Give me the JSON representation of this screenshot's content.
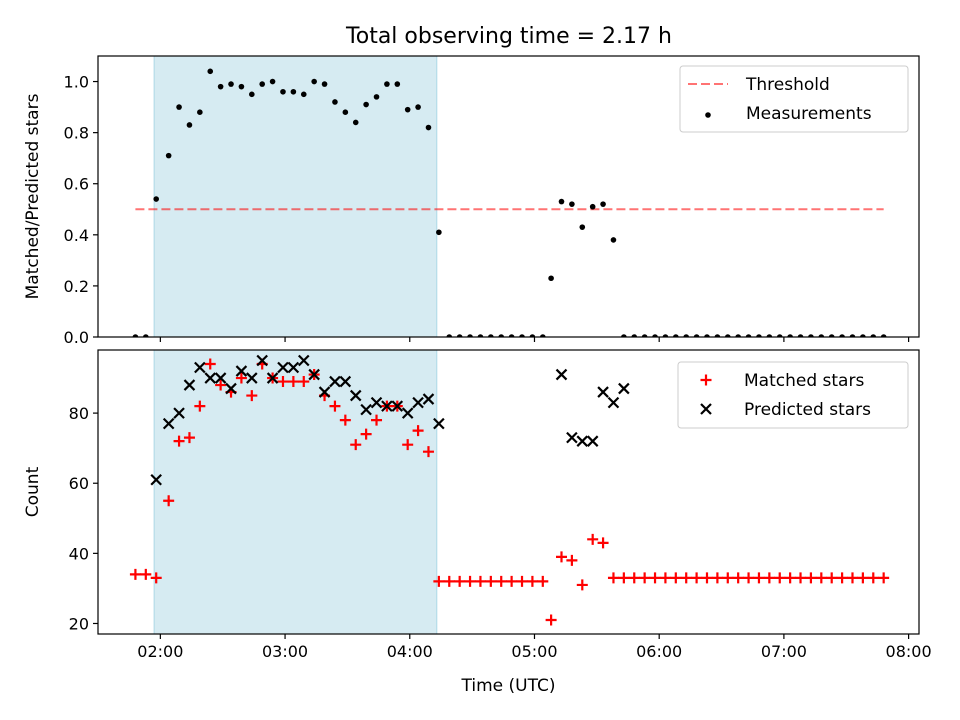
{
  "figure": {
    "title": "Total observing time = 2.17 h"
  },
  "chart_data": [
    {
      "type": "scatter",
      "ylabel": "Matched/Predicted stars",
      "xlabel": "",
      "xlim": [
        "01:30",
        "08:05"
      ],
      "ylim": [
        0,
        1.1
      ],
      "yticks": [
        0.0,
        0.2,
        0.4,
        0.6,
        0.8,
        1.0
      ],
      "ytick_labels": [
        "0.0",
        "0.2",
        "0.4",
        "0.6",
        "0.8",
        "1.0"
      ],
      "xticks": [
        "02:00",
        "03:00",
        "04:00",
        "05:00",
        "06:00",
        "07:00",
        "08:00"
      ],
      "grid": false,
      "legend_position": "top-right",
      "highlight_span": {
        "x": [
          "01:57",
          "04:13"
        ],
        "color": "#add8e6"
      },
      "threshold": {
        "name": "Threshold",
        "y": 0.5,
        "x": [
          "01:48",
          "07:48"
        ],
        "color": "#ff0000",
        "style": "dashed"
      },
      "series": [
        {
          "name": "Measurements",
          "marker": "dot",
          "color": "#000000",
          "x": [
            "01:48",
            "01:53",
            "01:58",
            "02:04",
            "02:09",
            "02:14",
            "02:19",
            "02:24",
            "02:29",
            "02:34",
            "02:39",
            "02:44",
            "02:49",
            "02:54",
            "02:59",
            "03:04",
            "03:09",
            "03:14",
            "03:19",
            "03:24",
            "03:29",
            "03:34",
            "03:39",
            "03:44",
            "03:49",
            "03:54",
            "03:59",
            "04:04",
            "04:09",
            "04:14",
            "04:19",
            "04:24",
            "04:29",
            "04:34",
            "04:39",
            "04:44",
            "04:49",
            "04:54",
            "04:59",
            "05:04",
            "05:08",
            "05:13",
            "05:18",
            "05:23",
            "05:28",
            "05:33",
            "05:38",
            "05:43",
            "05:48",
            "05:53",
            "05:58",
            "06:03",
            "06:08",
            "06:13",
            "06:18",
            "06:23",
            "06:28",
            "06:33",
            "06:38",
            "06:43",
            "06:48",
            "06:53",
            "06:58",
            "07:03",
            "07:08",
            "07:13",
            "07:18",
            "07:23",
            "07:28",
            "07:33",
            "07:38",
            "07:43",
            "07:48"
          ],
          "y": [
            0,
            0,
            0.54,
            0.71,
            0.9,
            0.83,
            0.88,
            1.04,
            0.98,
            0.99,
            0.98,
            0.95,
            0.99,
            1.0,
            0.96,
            0.96,
            0.95,
            1.0,
            0.99,
            0.92,
            0.88,
            0.84,
            0.91,
            0.94,
            0.99,
            0.99,
            0.89,
            0.9,
            0.82,
            0.41,
            0,
            0,
            0,
            0,
            0,
            0,
            0,
            0,
            0,
            0,
            0.23,
            0.53,
            0.52,
            0.43,
            0.51,
            0.52,
            0.38,
            0,
            0,
            0,
            0,
            0,
            0,
            0,
            0,
            0,
            0,
            0,
            0,
            0,
            0,
            0,
            0,
            0,
            0,
            0,
            0,
            0,
            0,
            0,
            0,
            0,
            0
          ]
        }
      ]
    },
    {
      "type": "scatter",
      "ylabel": "Count",
      "xlabel": "Time (UTC)",
      "xlim": [
        "01:30",
        "08:05"
      ],
      "ylim": [
        17,
        98
      ],
      "yticks": [
        20,
        40,
        60,
        80
      ],
      "ytick_labels": [
        "20",
        "40",
        "60",
        "80"
      ],
      "xticks": [
        "02:00",
        "03:00",
        "04:00",
        "05:00",
        "06:00",
        "07:00",
        "08:00"
      ],
      "grid": false,
      "legend_position": "top-right",
      "highlight_span": {
        "x": [
          "01:57",
          "04:13"
        ],
        "color": "#add8e6"
      },
      "series": [
        {
          "name": "Matched stars",
          "marker": "plus",
          "color": "#ff0000",
          "x": [
            "01:48",
            "01:53",
            "01:58",
            "02:04",
            "02:09",
            "02:14",
            "02:19",
            "02:24",
            "02:29",
            "02:34",
            "02:39",
            "02:44",
            "02:49",
            "02:54",
            "02:59",
            "03:04",
            "03:09",
            "03:14",
            "03:19",
            "03:24",
            "03:29",
            "03:34",
            "03:39",
            "03:44",
            "03:49",
            "03:54",
            "03:59",
            "04:04",
            "04:09",
            "04:14",
            "04:19",
            "04:24",
            "04:29",
            "04:34",
            "04:39",
            "04:44",
            "04:49",
            "04:54",
            "04:59",
            "05:04",
            "05:08",
            "05:13",
            "05:18",
            "05:23",
            "05:28",
            "05:33",
            "05:38",
            "05:43",
            "05:48",
            "05:53",
            "05:58",
            "06:03",
            "06:08",
            "06:13",
            "06:18",
            "06:23",
            "06:28",
            "06:33",
            "06:38",
            "06:43",
            "06:48",
            "06:53",
            "06:58",
            "07:03",
            "07:08",
            "07:13",
            "07:18",
            "07:23",
            "07:28",
            "07:33",
            "07:38",
            "07:43",
            "07:48"
          ],
          "y": [
            34,
            34,
            33,
            55,
            72,
            73,
            82,
            94,
            88,
            86,
            90,
            85,
            94,
            90,
            89,
            89,
            89,
            91,
            85,
            82,
            78,
            71,
            74,
            78,
            82,
            82,
            71,
            75,
            69,
            32,
            32,
            32,
            32,
            32,
            32,
            32,
            32,
            32,
            32,
            32,
            21,
            39,
            38,
            31,
            44,
            43,
            33,
            33,
            33,
            33,
            33,
            33,
            33,
            33,
            33,
            33,
            33,
            33,
            33,
            33,
            33,
            33,
            33,
            33,
            33,
            33,
            33,
            33,
            33,
            33,
            33,
            33,
            33
          ]
        },
        {
          "name": "Predicted stars",
          "marker": "x",
          "color": "#000000",
          "x": [
            "01:58",
            "02:04",
            "02:09",
            "02:14",
            "02:19",
            "02:24",
            "02:29",
            "02:34",
            "02:39",
            "02:44",
            "02:49",
            "02:54",
            "02:59",
            "03:04",
            "03:09",
            "03:14",
            "03:19",
            "03:24",
            "03:29",
            "03:34",
            "03:39",
            "03:44",
            "03:49",
            "03:54",
            "03:59",
            "04:04",
            "04:09",
            "04:14",
            "05:13",
            "05:18",
            "05:23",
            "05:28",
            "05:33",
            "05:38",
            "05:43"
          ],
          "y": [
            61,
            77,
            80,
            88,
            93,
            90,
            90,
            87,
            92,
            90,
            95,
            90,
            93,
            93,
            95,
            91,
            86,
            89,
            89,
            85,
            81,
            83,
            82,
            82,
            80,
            83,
            84,
            77,
            91,
            73,
            72,
            72,
            86,
            83,
            87
          ]
        }
      ]
    }
  ]
}
